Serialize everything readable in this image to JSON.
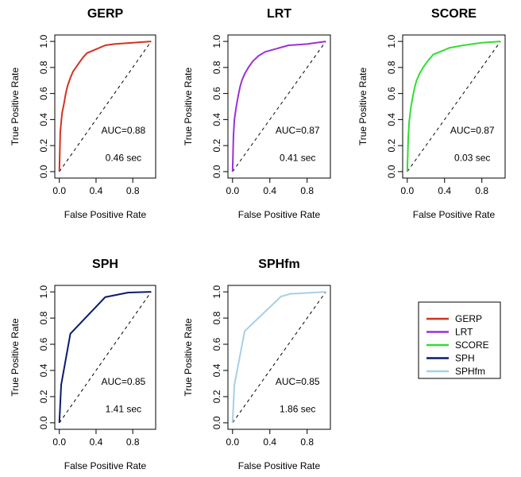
{
  "chart_data": [
    {
      "type": "line",
      "title": "GERP",
      "xlabel": "False Positive Rate",
      "ylabel": "True Positive Rate",
      "xlim": [
        0,
        1
      ],
      "ylim": [
        0,
        1
      ],
      "xticks": [
        "0.0",
        "0.4",
        "0.8"
      ],
      "yticks": [
        "0.0",
        "0.2",
        "0.4",
        "0.6",
        "0.8",
        "1.0"
      ],
      "auc_label": "AUC=0.88",
      "time_label": "0.46 sec",
      "color": "#d7301f",
      "x": [
        0,
        0.01,
        0.02,
        0.03,
        0.05,
        0.07,
        0.09,
        0.12,
        0.15,
        0.2,
        0.25,
        0.3,
        0.4,
        0.5,
        0.6,
        0.8,
        1.0
      ],
      "y": [
        0,
        0.3,
        0.38,
        0.45,
        0.52,
        0.6,
        0.66,
        0.72,
        0.77,
        0.82,
        0.87,
        0.91,
        0.94,
        0.97,
        0.98,
        0.99,
        1.0
      ]
    },
    {
      "type": "line",
      "title": "LRT",
      "xlabel": "False Positive Rate",
      "ylabel": "True Positive Rate",
      "xlim": [
        0,
        1
      ],
      "ylim": [
        0,
        1
      ],
      "xticks": [
        "0.0",
        "0.4",
        "0.8"
      ],
      "yticks": [
        "0.0",
        "0.2",
        "0.4",
        "0.6",
        "0.8",
        "1.0"
      ],
      "auc_label": "AUC=0.87",
      "time_label": "0.41 sec",
      "color": "#9b30d9",
      "x": [
        0,
        0.01,
        0.02,
        0.04,
        0.06,
        0.08,
        0.1,
        0.13,
        0.17,
        0.22,
        0.28,
        0.35,
        0.45,
        0.6,
        0.8,
        1.0
      ],
      "y": [
        0,
        0.28,
        0.4,
        0.5,
        0.58,
        0.65,
        0.7,
        0.75,
        0.8,
        0.85,
        0.89,
        0.92,
        0.94,
        0.97,
        0.98,
        1.0
      ]
    },
    {
      "type": "line",
      "title": "SCORE",
      "xlabel": "False Positive Rate",
      "ylabel": "True Positive Rate",
      "xlim": [
        0,
        1
      ],
      "ylim": [
        0,
        1
      ],
      "xticks": [
        "0.0",
        "0.4",
        "0.8"
      ],
      "yticks": [
        "0.0",
        "0.2",
        "0.4",
        "0.6",
        "0.8",
        "1.0"
      ],
      "auc_label": "AUC=0.87",
      "time_label": "0.03 sec",
      "color": "#33dd33",
      "x": [
        0,
        0.01,
        0.02,
        0.04,
        0.06,
        0.08,
        0.1,
        0.13,
        0.17,
        0.22,
        0.28,
        0.35,
        0.45,
        0.6,
        0.8,
        1.0
      ],
      "y": [
        0,
        0.25,
        0.38,
        0.5,
        0.58,
        0.65,
        0.7,
        0.75,
        0.8,
        0.85,
        0.9,
        0.92,
        0.95,
        0.97,
        0.99,
        1.0
      ]
    },
    {
      "type": "line",
      "title": "SPH",
      "xlabel": "False Positive Rate",
      "ylabel": "True Positive Rate",
      "xlim": [
        0,
        1
      ],
      "ylim": [
        0,
        1
      ],
      "xticks": [
        "0.0",
        "0.4",
        "0.8"
      ],
      "yticks": [
        "0.0",
        "0.2",
        "0.4",
        "0.6",
        "0.8",
        "1.0"
      ],
      "auc_label": "AUC=0.85",
      "time_label": "1.41 sec",
      "color": "#0c1a6e",
      "x": [
        0,
        0.02,
        0.12,
        0.5,
        0.75,
        1.0
      ],
      "y": [
        0,
        0.29,
        0.68,
        0.96,
        0.995,
        1.0
      ]
    },
    {
      "type": "line",
      "title": "SPHfm",
      "xlabel": "False Positive Rate",
      "ylabel": "True Positive Rate",
      "xlim": [
        0,
        1
      ],
      "ylim": [
        0,
        1
      ],
      "xticks": [
        "0.0",
        "0.4",
        "0.8"
      ],
      "yticks": [
        "0.0",
        "0.2",
        "0.4",
        "0.6",
        "0.8",
        "1.0"
      ],
      "auc_label": "AUC=0.85",
      "time_label": "1.86 sec",
      "color": "#a6cfe8",
      "x": [
        0,
        0.02,
        0.13,
        0.52,
        0.62,
        1.0
      ],
      "y": [
        0,
        0.29,
        0.7,
        0.965,
        0.985,
        1.0
      ]
    }
  ],
  "legend": {
    "entries": [
      {
        "label": "GERP",
        "color": "#d7301f"
      },
      {
        "label": "LRT",
        "color": "#9b30d9"
      },
      {
        "label": "SCORE",
        "color": "#33dd33"
      },
      {
        "label": "SPH",
        "color": "#0c1a6e"
      },
      {
        "label": "SPHfm",
        "color": "#a6cfe8"
      }
    ]
  }
}
